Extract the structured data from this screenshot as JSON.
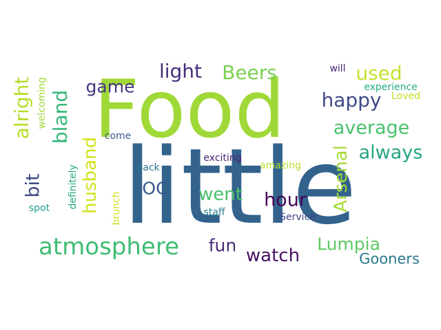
{
  "palette": {
    "lime": "#a0d937",
    "yellowgreen": "#d6e137",
    "green": "#4cc26c",
    "teal": "#26a784",
    "cyan": "#2a8c8c",
    "steelblue": "#33638d",
    "indigo": "#3e4989",
    "purple": "#472d7b",
    "darkpurple": "#440154"
  },
  "words": [
    {
      "text": "Food",
      "color": "#a0d937"
    },
    {
      "text": "little",
      "color": "#33638d"
    },
    {
      "text": "atmosphere",
      "color": "#3fbc73"
    },
    {
      "text": "light",
      "color": "#472d7b"
    },
    {
      "text": "Beers",
      "color": "#7ad151"
    },
    {
      "text": "used",
      "color": "#c6e130"
    },
    {
      "text": "game",
      "color": "#453781"
    },
    {
      "text": "happy",
      "color": "#3e4a89"
    },
    {
      "text": "average",
      "color": "#4ac16d"
    },
    {
      "text": "always",
      "color": "#25a584"
    },
    {
      "text": "alright",
      "color": "#b5de2b"
    },
    {
      "text": "bland",
      "color": "#35b779"
    },
    {
      "text": "bit",
      "color": "#3e4989"
    },
    {
      "text": "husband",
      "color": "#d2e21b"
    },
    {
      "text": "OC",
      "color": "#38598c"
    },
    {
      "text": "went",
      "color": "#4ac16d"
    },
    {
      "text": "hour",
      "color": "#440154"
    },
    {
      "text": "Arsenal",
      "color": "#a5db36"
    },
    {
      "text": "fun",
      "color": "#472d7b"
    },
    {
      "text": "Lumpia",
      "color": "#5ec962"
    },
    {
      "text": "watch",
      "color": "#471063"
    },
    {
      "text": "Gooners",
      "color": "#2a788e"
    },
    {
      "text": "will",
      "color": "#482475"
    },
    {
      "text": "experience",
      "color": "#25ab82"
    },
    {
      "text": "Loved",
      "color": "#c0df25"
    },
    {
      "text": "welcoming",
      "color": "#9fda3a"
    },
    {
      "text": "come",
      "color": "#39568c"
    },
    {
      "text": "exciting",
      "color": "#482173"
    },
    {
      "text": "amazing",
      "color": "#b5de2b"
    },
    {
      "text": "back",
      "color": "#2c728e"
    },
    {
      "text": "definitely",
      "color": "#22a884"
    },
    {
      "text": "brunch",
      "color": "#cde11d"
    },
    {
      "text": "staff",
      "color": "#26818e"
    },
    {
      "text": "Service",
      "color": "#414487"
    },
    {
      "text": "spot",
      "color": "#1f9e89"
    }
  ]
}
